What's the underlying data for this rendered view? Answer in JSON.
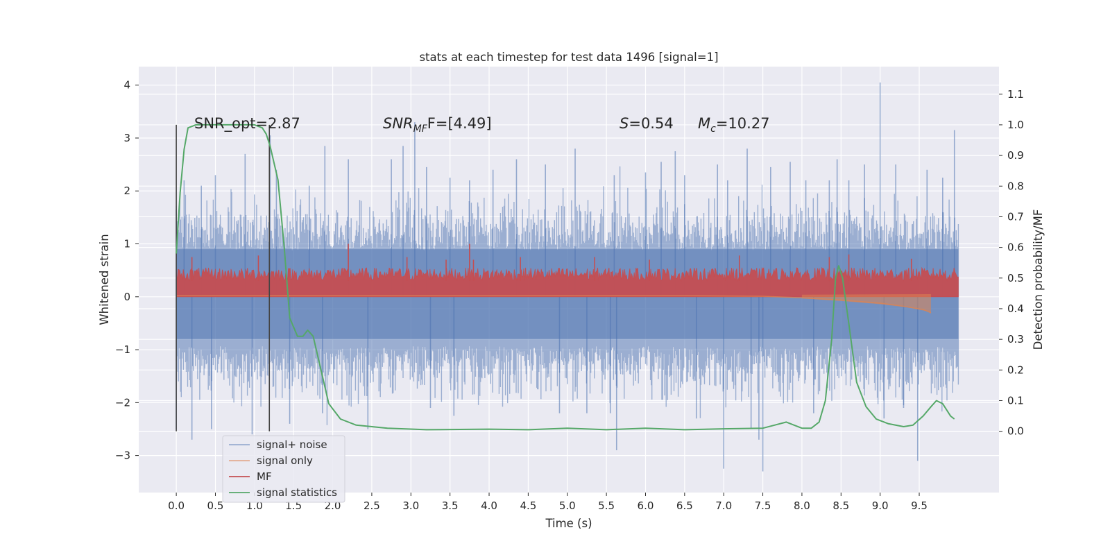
{
  "chart_data": {
    "type": "line",
    "title": "stats at each timestep for test data 1496 [signal=1]",
    "xlabel": "Time (s)",
    "ylabel": "Whitened strain",
    "ylabel_right": "Detection probability/MF",
    "xlim": [
      -0.48,
      10.52
    ],
    "ylim": [
      -3.7,
      4.35
    ],
    "ylim_right": [
      -0.2,
      1.19
    ],
    "x_ticks": [
      "0.0",
      "0.5",
      "1.0",
      "1.5",
      "2.0",
      "2.5",
      "3.0",
      "3.5",
      "4.0",
      "4.5",
      "5.0",
      "5.5",
      "6.0",
      "6.5",
      "7.0",
      "7.5",
      "8.0",
      "8.5",
      "9.0",
      "9.5"
    ],
    "x_tick_values": [
      0,
      0.5,
      1,
      1.5,
      2,
      2.5,
      3,
      3.5,
      4,
      4.5,
      5,
      5.5,
      6,
      6.5,
      7,
      7.5,
      8,
      8.5,
      9,
      9.5
    ],
    "y_ticks": [
      "−3",
      "−2",
      "−1",
      "0",
      "1",
      "2",
      "3",
      "4"
    ],
    "y_tick_values": [
      -3,
      -2,
      -1,
      0,
      1,
      2,
      3,
      4
    ],
    "y_right_ticks": [
      "0.0",
      "0.1",
      "0.2",
      "0.3",
      "0.4",
      "0.5",
      "0.6",
      "0.7",
      "0.8",
      "0.9",
      "1.0",
      "1.1"
    ],
    "y_right_tick_values": [
      0,
      0.1,
      0.2,
      0.3,
      0.4,
      0.5,
      0.6,
      0.7,
      0.8,
      0.9,
      1.0,
      1.1
    ],
    "grid": true,
    "legend_position": "lower-left",
    "annotations": {
      "snr_opt": "SNR_opt=2.87",
      "snr_mf_prefix": "SNR",
      "snr_mf_sub": "MF",
      "snr_mf_suffix": "F=[4.49]",
      "s_var": "S",
      "s_value": "=0.54",
      "mc_var": "M",
      "mc_sub": "c",
      "mc_value": "=10.27"
    },
    "vertical_lines_x": [
      0.0,
      1.19
    ],
    "series": [
      {
        "name": "signal+ noise",
        "color": "#4c72b0",
        "axis": "left",
        "x_range": [
          0,
          10
        ],
        "approx_range": [
          -3.3,
          4.05
        ],
        "typical_envelope": [
          -1.7,
          1.6
        ],
        "spikes": [
          [
            0.0,
            1.65
          ],
          [
            0.0,
            -2.5
          ],
          [
            0.1,
            2.2
          ],
          [
            0.2,
            -2.7
          ],
          [
            0.32,
            2.1
          ],
          [
            0.45,
            -2.5
          ],
          [
            0.5,
            2.3
          ],
          [
            0.88,
            2.7
          ],
          [
            0.97,
            -2.6
          ],
          [
            1.2,
            3.05
          ],
          [
            1.28,
            2.4
          ],
          [
            1.45,
            -2.4
          ],
          [
            1.7,
            2.1
          ],
          [
            1.87,
            -2.2
          ],
          [
            1.9,
            2.85
          ],
          [
            2.2,
            2.6
          ],
          [
            2.45,
            -2.5
          ],
          [
            2.75,
            2.6
          ],
          [
            2.9,
            2.85
          ],
          [
            3.05,
            3.3
          ],
          [
            3.2,
            2.45
          ],
          [
            3.25,
            -2.1
          ],
          [
            3.5,
            2.25
          ],
          [
            3.55,
            -2.25
          ],
          [
            3.75,
            2.2
          ],
          [
            4.05,
            2.4
          ],
          [
            4.35,
            2.6
          ],
          [
            4.72,
            2.5
          ],
          [
            4.9,
            -2.2
          ],
          [
            5.1,
            2.8
          ],
          [
            5.25,
            -2.2
          ],
          [
            5.6,
            2.3
          ],
          [
            5.55,
            -2.2
          ],
          [
            5.63,
            -2.9
          ],
          [
            6.0,
            2.35
          ],
          [
            6.2,
            2.55
          ],
          [
            6.38,
            2.75
          ],
          [
            6.5,
            2.3
          ],
          [
            6.65,
            -2.3
          ],
          [
            6.92,
            2.5
          ],
          [
            7.0,
            -3.25
          ],
          [
            7.05,
            2.2
          ],
          [
            7.3,
            2.8
          ],
          [
            7.35,
            -2.5
          ],
          [
            7.45,
            -2.7
          ],
          [
            7.5,
            -3.3
          ],
          [
            7.6,
            2.45
          ],
          [
            7.85,
            2.55
          ],
          [
            8.05,
            2.2
          ],
          [
            8.15,
            -2.2
          ],
          [
            8.35,
            2.2
          ],
          [
            8.45,
            2.6
          ],
          [
            8.6,
            2.2
          ],
          [
            8.8,
            2.5
          ],
          [
            9.0,
            4.05
          ],
          [
            9.05,
            -2.3
          ],
          [
            9.2,
            2.5
          ],
          [
            9.3,
            -2.1
          ],
          [
            9.48,
            -3.1
          ],
          [
            9.6,
            2.4
          ],
          [
            9.8,
            2.25
          ],
          [
            9.95,
            3.15
          ]
        ]
      },
      {
        "name": "signal only",
        "color": "#dd8452",
        "axis": "left",
        "points": [
          [
            0,
            0.02
          ],
          [
            6.5,
            0.02
          ],
          [
            7.5,
            0.01
          ],
          [
            8.0,
            -0.02
          ],
          [
            8.5,
            -0.06
          ],
          [
            9.0,
            -0.12
          ],
          [
            9.3,
            -0.18
          ],
          [
            9.55,
            -0.24
          ],
          [
            9.65,
            -0.3
          ]
        ],
        "y_minus_at_x": [
          [
            8.0,
            -0.03
          ],
          [
            8.5,
            -0.08
          ],
          [
            9.0,
            -0.14
          ],
          [
            9.35,
            -0.2
          ],
          [
            9.62,
            -0.28
          ],
          [
            9.65,
            -0.32
          ]
        ]
      },
      {
        "name": "MF",
        "color": "#c44e52",
        "axis": "left",
        "x_range": [
          0,
          10
        ],
        "band": [
          0.0,
          0.55
        ],
        "approx_range": [
          0.0,
          1.0
        ],
        "spikes": [
          [
            0.2,
            0.75
          ],
          [
            1.05,
            0.78
          ],
          [
            2.2,
            1.0
          ],
          [
            2.95,
            0.75
          ],
          [
            3.45,
            0.7
          ],
          [
            3.75,
            1.0
          ],
          [
            3.8,
            0.7
          ],
          [
            4.4,
            0.75
          ],
          [
            5.35,
            0.75
          ],
          [
            6.05,
            0.7
          ],
          [
            7.2,
            0.78
          ],
          [
            8.35,
            0.75
          ],
          [
            8.6,
            0.8
          ],
          [
            9.4,
            0.72
          ]
        ]
      },
      {
        "name": "signal statistics",
        "color": "#55a868",
        "axis": "right",
        "points": [
          [
            0.0,
            0.58
          ],
          [
            0.05,
            0.78
          ],
          [
            0.1,
            0.92
          ],
          [
            0.15,
            0.99
          ],
          [
            0.25,
            1.0
          ],
          [
            0.5,
            1.0
          ],
          [
            0.75,
            1.0
          ],
          [
            1.0,
            1.0
          ],
          [
            1.1,
            0.99
          ],
          [
            1.15,
            0.97
          ],
          [
            1.2,
            0.93
          ],
          [
            1.3,
            0.82
          ],
          [
            1.38,
            0.6
          ],
          [
            1.45,
            0.37
          ],
          [
            1.55,
            0.31
          ],
          [
            1.62,
            0.31
          ],
          [
            1.68,
            0.33
          ],
          [
            1.75,
            0.31
          ],
          [
            1.85,
            0.2
          ],
          [
            1.95,
            0.09
          ],
          [
            2.1,
            0.04
          ],
          [
            2.3,
            0.02
          ],
          [
            2.7,
            0.01
          ],
          [
            3.2,
            0.005
          ],
          [
            4.0,
            0.007
          ],
          [
            4.5,
            0.005
          ],
          [
            5.0,
            0.01
          ],
          [
            5.5,
            0.005
          ],
          [
            6.0,
            0.01
          ],
          [
            6.5,
            0.005
          ],
          [
            7.0,
            0.008
          ],
          [
            7.5,
            0.01
          ],
          [
            7.65,
            0.02
          ],
          [
            7.8,
            0.03
          ],
          [
            8.0,
            0.01
          ],
          [
            8.12,
            0.01
          ],
          [
            8.22,
            0.03
          ],
          [
            8.3,
            0.1
          ],
          [
            8.38,
            0.3
          ],
          [
            8.43,
            0.5
          ],
          [
            8.47,
            0.54
          ],
          [
            8.52,
            0.5
          ],
          [
            8.6,
            0.35
          ],
          [
            8.7,
            0.16
          ],
          [
            8.82,
            0.08
          ],
          [
            8.95,
            0.04
          ],
          [
            9.1,
            0.025
          ],
          [
            9.3,
            0.015
          ],
          [
            9.42,
            0.02
          ],
          [
            9.55,
            0.05
          ],
          [
            9.65,
            0.08
          ],
          [
            9.72,
            0.1
          ],
          [
            9.8,
            0.09
          ],
          [
            9.9,
            0.05
          ],
          [
            9.95,
            0.04
          ]
        ]
      }
    ]
  }
}
